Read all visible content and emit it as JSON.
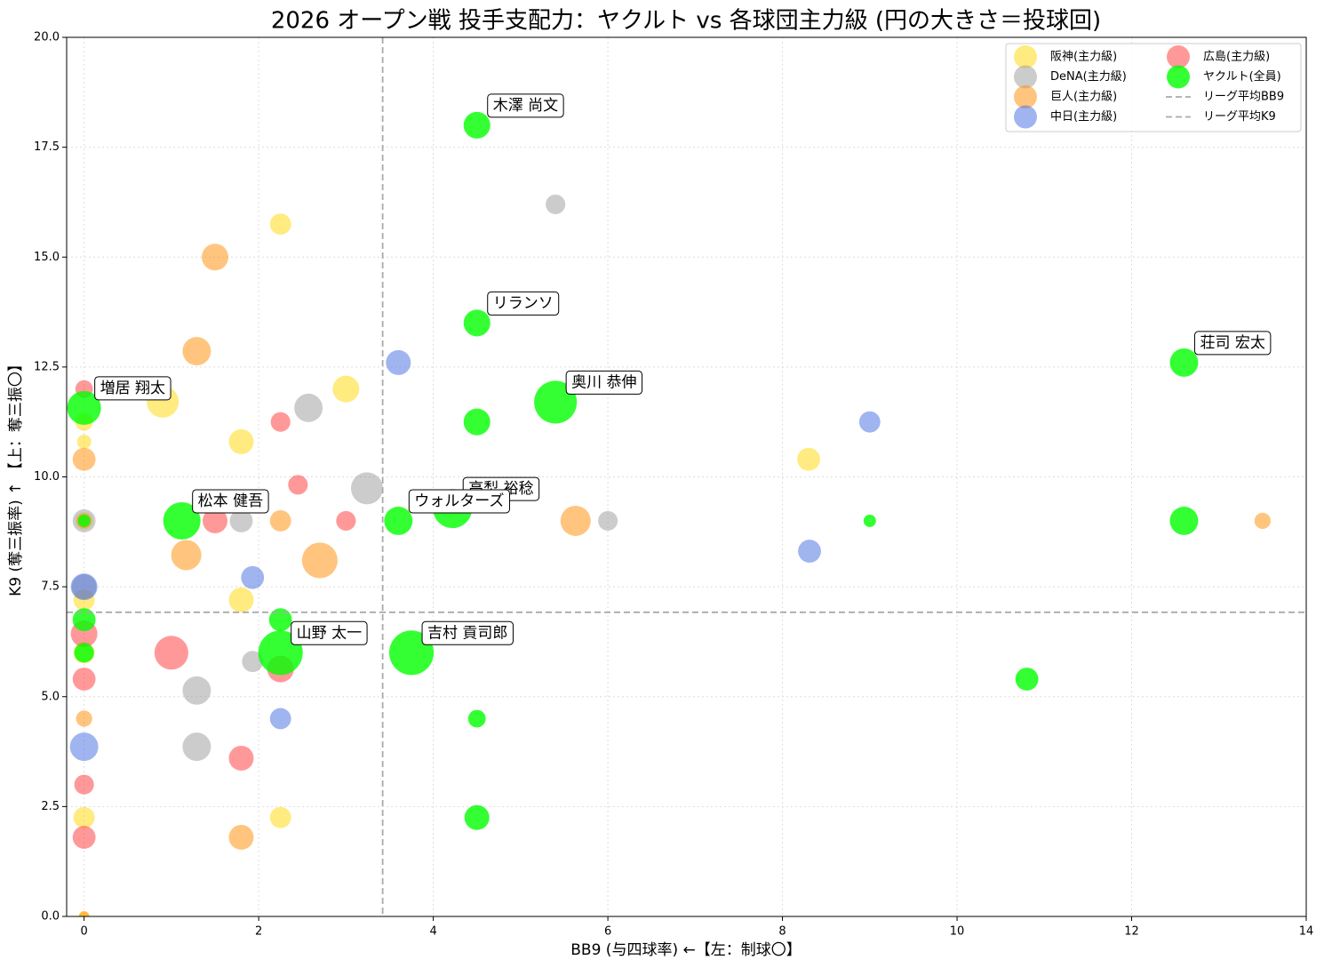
{
  "chart_data": {
    "type": "scatter",
    "title": "2026 オープン戦 投手支配力：ヤクルト vs 各球団主力級 (円の大きさ＝投球回)",
    "x_label": "BB9 (与四球率) ←【左：制球〇】",
    "y_label": "K9 (奪三振率) ↑ 【上：奪三振〇】",
    "xlim": [
      -0.2,
      14
    ],
    "ylim": [
      0,
      20
    ],
    "xticks": [
      0,
      2,
      4,
      6,
      8,
      10,
      12,
      14
    ],
    "yticks": [
      {
        "value": 0,
        "label": "0.0"
      },
      {
        "value": 2.5,
        "label": "2.5"
      },
      {
        "value": 5,
        "label": "5.0"
      },
      {
        "value": 7.5,
        "label": "7.5"
      },
      {
        "value": 10,
        "label": "10.0"
      },
      {
        "value": 12.5,
        "label": "12.5"
      },
      {
        "value": 15,
        "label": "15.0"
      },
      {
        "value": 17.5,
        "label": "17.5"
      },
      {
        "value": 20,
        "label": "20.0"
      }
    ],
    "grid": true,
    "legend_position": "upper right",
    "series": [
      {
        "name": "阪神(主力級)",
        "color": "#ffd700",
        "opacity": 0.5,
        "x": [
          2.25,
          3.0,
          0.9,
          1.8,
          8.3,
          0,
          0,
          1.8,
          0,
          0,
          2.25,
          0,
          0,
          0
        ],
        "values": [
          15.75,
          12.0,
          11.71,
          10.8,
          10.4,
          10.8,
          11.25,
          7.2,
          7.2,
          6.0,
          2.25,
          2.25,
          0,
          9.0
        ],
        "sizes": [
          2.9,
          4.6,
          6.6,
          4,
          3.4,
          1.3,
          2,
          4,
          2.9,
          2.9,
          2.9,
          2.9,
          0.7,
          2
        ]
      },
      {
        "name": "DeNA(主力級)",
        "color": "#999999",
        "opacity": 0.5,
        "x": [
          5.4,
          2.57,
          3.24,
          1.8,
          6.0,
          0,
          1.93,
          1.29,
          1.29,
          0
        ],
        "values": [
          16.2,
          11.57,
          9.74,
          9.0,
          9.0,
          9.0,
          5.8,
          5.14,
          3.86,
          7.5
        ],
        "sizes": [
          2.5,
          5.2,
          6.6,
          3.4,
          2.5,
          3.4,
          2.9,
          5.2,
          5.2,
          4
        ]
      },
      {
        "name": "巨人(主力級)",
        "color": "#ff8c00",
        "opacity": 0.5,
        "x": [
          1.5,
          1.29,
          0,
          2.25,
          1.17,
          2.7,
          5.63,
          13.5,
          0,
          0,
          1.8,
          0
        ],
        "values": [
          15.0,
          12.86,
          10.4,
          9.0,
          8.22,
          8.1,
          9.0,
          9.0,
          9.0,
          4.5,
          1.8,
          0
        ],
        "sizes": [
          4.6,
          5.2,
          3.4,
          2.9,
          5.9,
          8.2,
          5.9,
          1.7,
          1.3,
          1.7,
          4,
          0.7
        ]
      },
      {
        "name": "中日(主力級)",
        "color": "#4169e1",
        "opacity": 0.5,
        "x": [
          3.6,
          9.0,
          8.31,
          1.93,
          0,
          2.25,
          0
        ],
        "values": [
          12.6,
          11.25,
          8.31,
          7.71,
          7.5,
          4.5,
          3.86
        ],
        "sizes": [
          4,
          2.9,
          3.4,
          3.4,
          4.6,
          2.9,
          5.2
        ]
      },
      {
        "name": "広島(主力級)",
        "color": "#ff3333",
        "opacity": 0.5,
        "x": [
          0,
          2.25,
          2.45,
          1.5,
          3.0,
          1.0,
          0,
          0,
          2.25,
          1.8,
          0,
          0
        ],
        "values": [
          12.0,
          11.25,
          9.82,
          9.0,
          9.0,
          6.0,
          6.43,
          5.4,
          5.63,
          3.6,
          3.0,
          1.8
        ],
        "sizes": [
          2,
          2.5,
          2.5,
          4,
          2.5,
          7.4,
          4.6,
          3.4,
          4.6,
          4,
          2.5,
          3.4
        ]
      },
      {
        "name": "ヤクルト(全員)",
        "color": "#00ff00",
        "opacity": 0.8,
        "x": [
          4.5,
          4.5,
          12.6,
          5.4,
          4.5,
          0,
          1.12,
          3.6,
          4.22,
          12.6,
          9.0,
          0,
          2.25,
          0,
          0,
          2.25,
          3.75,
          10.8,
          4.5,
          4.5
        ],
        "values": [
          18.0,
          13.5,
          12.6,
          11.7,
          11.25,
          11.57,
          9.0,
          9.0,
          9.28,
          9.0,
          9.0,
          9.0,
          6.75,
          6.75,
          6.0,
          6.0,
          6.0,
          5.4,
          4.5,
          2.25
        ],
        "sizes": [
          4.6,
          4.6,
          5.2,
          11.8,
          4.6,
          7.4,
          9,
          5.2,
          9.9,
          5.2,
          1,
          1,
          3.4,
          3.4,
          2.5,
          12.8,
          12.8,
          3.4,
          2,
          4
        ]
      }
    ],
    "reference_lines": [
      {
        "name": "リーグ平均BB9",
        "axis": "x",
        "value": 3.42,
        "color": "#aaaaaa"
      },
      {
        "name": "リーグ平均K9",
        "axis": "y",
        "value": 6.92,
        "color": "#aaaaaa"
      }
    ],
    "annotations": [
      {
        "text": "木澤 尚文",
        "x": 4.5,
        "y": 18.0
      },
      {
        "text": "リランソ",
        "x": 4.5,
        "y": 13.5
      },
      {
        "text": "荘司 宏太",
        "x": 12.6,
        "y": 12.6
      },
      {
        "text": "奥川 恭伸",
        "x": 5.4,
        "y": 11.7
      },
      {
        "text": "増居 翔太",
        "x": 0,
        "y": 11.57
      },
      {
        "text": "高梨 裕稔",
        "x": 4.22,
        "y": 9.28
      },
      {
        "text": "松本 健吾",
        "x": 1.12,
        "y": 9.0
      },
      {
        "text": "ウォルターズ",
        "x": 3.6,
        "y": 9.0
      },
      {
        "text": "山野 太一",
        "x": 2.25,
        "y": 6.0
      },
      {
        "text": "吉村 貢司郎",
        "x": 3.75,
        "y": 6.0
      }
    ]
  }
}
